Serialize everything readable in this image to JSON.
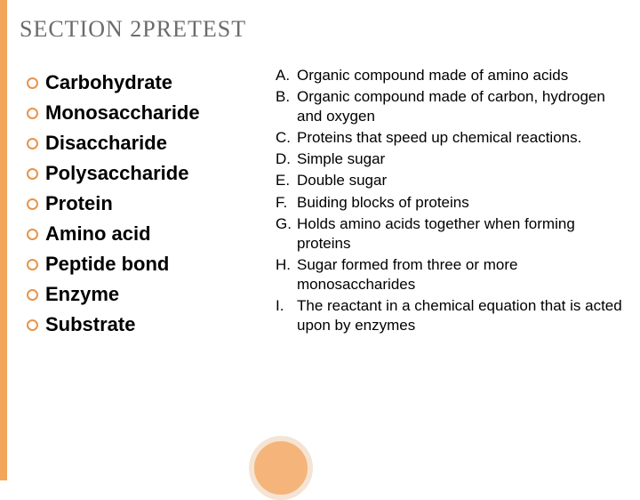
{
  "title": {
    "section_word": "SECTION",
    "number": "2",
    "pretest_word": "PRETEST"
  },
  "terms": [
    "Carbohydrate",
    "Monosaccharide",
    "Disaccharide",
    "Polysaccharide",
    "Protein",
    "Amino acid",
    "Peptide bond",
    "Enzyme",
    "Substrate"
  ],
  "definitions": [
    {
      "letter": "A.",
      "text": "Organic compound made of amino acids"
    },
    {
      "letter": "B.",
      "text": "Organic compound made of carbon, hydrogen and oxygen"
    },
    {
      "letter": "C.",
      "text": "Proteins that speed up chemical reactions."
    },
    {
      "letter": "D.",
      "text": "Simple sugar"
    },
    {
      "letter": "E.",
      "text": "Double sugar"
    },
    {
      "letter": "F.",
      "text": "Buiding blocks of proteins"
    },
    {
      "letter": "G.",
      "text": "Holds amino acids together when forming proteins"
    },
    {
      "letter": "H.",
      "text": "Sugar formed from three or more monosaccharides"
    },
    {
      "letter": "I.",
      "text": "The reactant in a chemical equation that is acted upon by enzymes"
    }
  ],
  "colors": {
    "left_border": "#f2a65a",
    "title_color": "#6b6b6b",
    "bullet_border": "#e8944a",
    "circle_fill": "#f4b47a",
    "circle_ring": "#f5e4d3"
  }
}
